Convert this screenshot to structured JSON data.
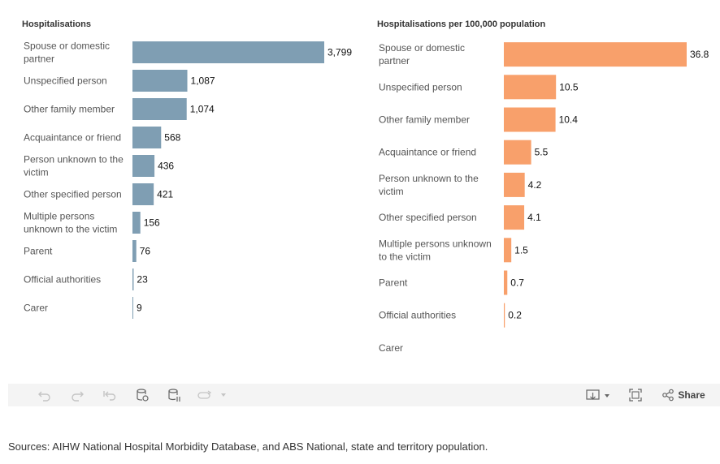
{
  "chart_data": [
    {
      "type": "bar",
      "orientation": "horizontal",
      "title": "Hospitalisations",
      "categories": [
        "Spouse or domestic partner",
        "Unspecified person",
        "Other family member",
        "Acquaintance or friend",
        "Person unknown to the victim",
        "Other specified person",
        "Multiple persons unknown to the victim",
        "Parent",
        "Official authorities",
        "Carer"
      ],
      "category_lines": [
        [
          "Spouse or domestic",
          "partner"
        ],
        [
          "Unspecified person"
        ],
        [
          "Other family member"
        ],
        [
          "Acquaintance or friend"
        ],
        [
          "Person unknown to the",
          "victim"
        ],
        [
          "Other specified person"
        ],
        [
          "Multiple persons",
          "unknown to the victim"
        ],
        [
          "Parent"
        ],
        [
          "Official authorities"
        ],
        [
          "Carer"
        ]
      ],
      "values": [
        3799,
        1087,
        1074,
        568,
        436,
        421,
        156,
        76,
        23,
        9
      ],
      "value_labels": [
        "3,799",
        "1,087",
        "1,074",
        "568",
        "436",
        "421",
        "156",
        "76",
        "23",
        "9"
      ],
      "color": "#7f9eb3"
    },
    {
      "type": "bar",
      "orientation": "horizontal",
      "title": "Hospitalisations per 100,000 population",
      "categories": [
        "Spouse or domestic partner",
        "Unspecified person",
        "Other family member",
        "Acquaintance or friend",
        "Person unknown to the victim",
        "Other specified person",
        "Multiple persons unknown to the victim",
        "Parent",
        "Official authorities",
        "Carer"
      ],
      "category_lines": [
        [
          "Spouse or domestic",
          "partner"
        ],
        [
          "Unspecified person"
        ],
        [
          "Other family member"
        ],
        [
          "Acquaintance or friend"
        ],
        [
          "Person unknown to the",
          "victim"
        ],
        [
          "Other specified person"
        ],
        [
          "Multiple persons unknown",
          "to the victim"
        ],
        [
          "Parent"
        ],
        [
          "Official authorities"
        ],
        [
          "Carer"
        ]
      ],
      "values": [
        36.8,
        10.5,
        10.4,
        5.5,
        4.2,
        4.1,
        1.5,
        0.7,
        0.2,
        null
      ],
      "value_labels": [
        "36.8",
        "10.5",
        "10.4",
        "5.5",
        "4.2",
        "4.1",
        "1.5",
        "0.7",
        "0.2",
        ""
      ],
      "color": "#f8a06b"
    }
  ],
  "toolbar": {
    "share_label": "Share",
    "icons": [
      "undo-icon",
      "redo-icon",
      "revert-icon",
      "refresh-icon",
      "pause-icon",
      "share-view-icon",
      "download-icon",
      "fullscreen-icon",
      "share-icon"
    ]
  },
  "footer": {
    "source": "Sources: AIHW National Hospital Morbidity Database, and ABS National, state and territory population."
  }
}
